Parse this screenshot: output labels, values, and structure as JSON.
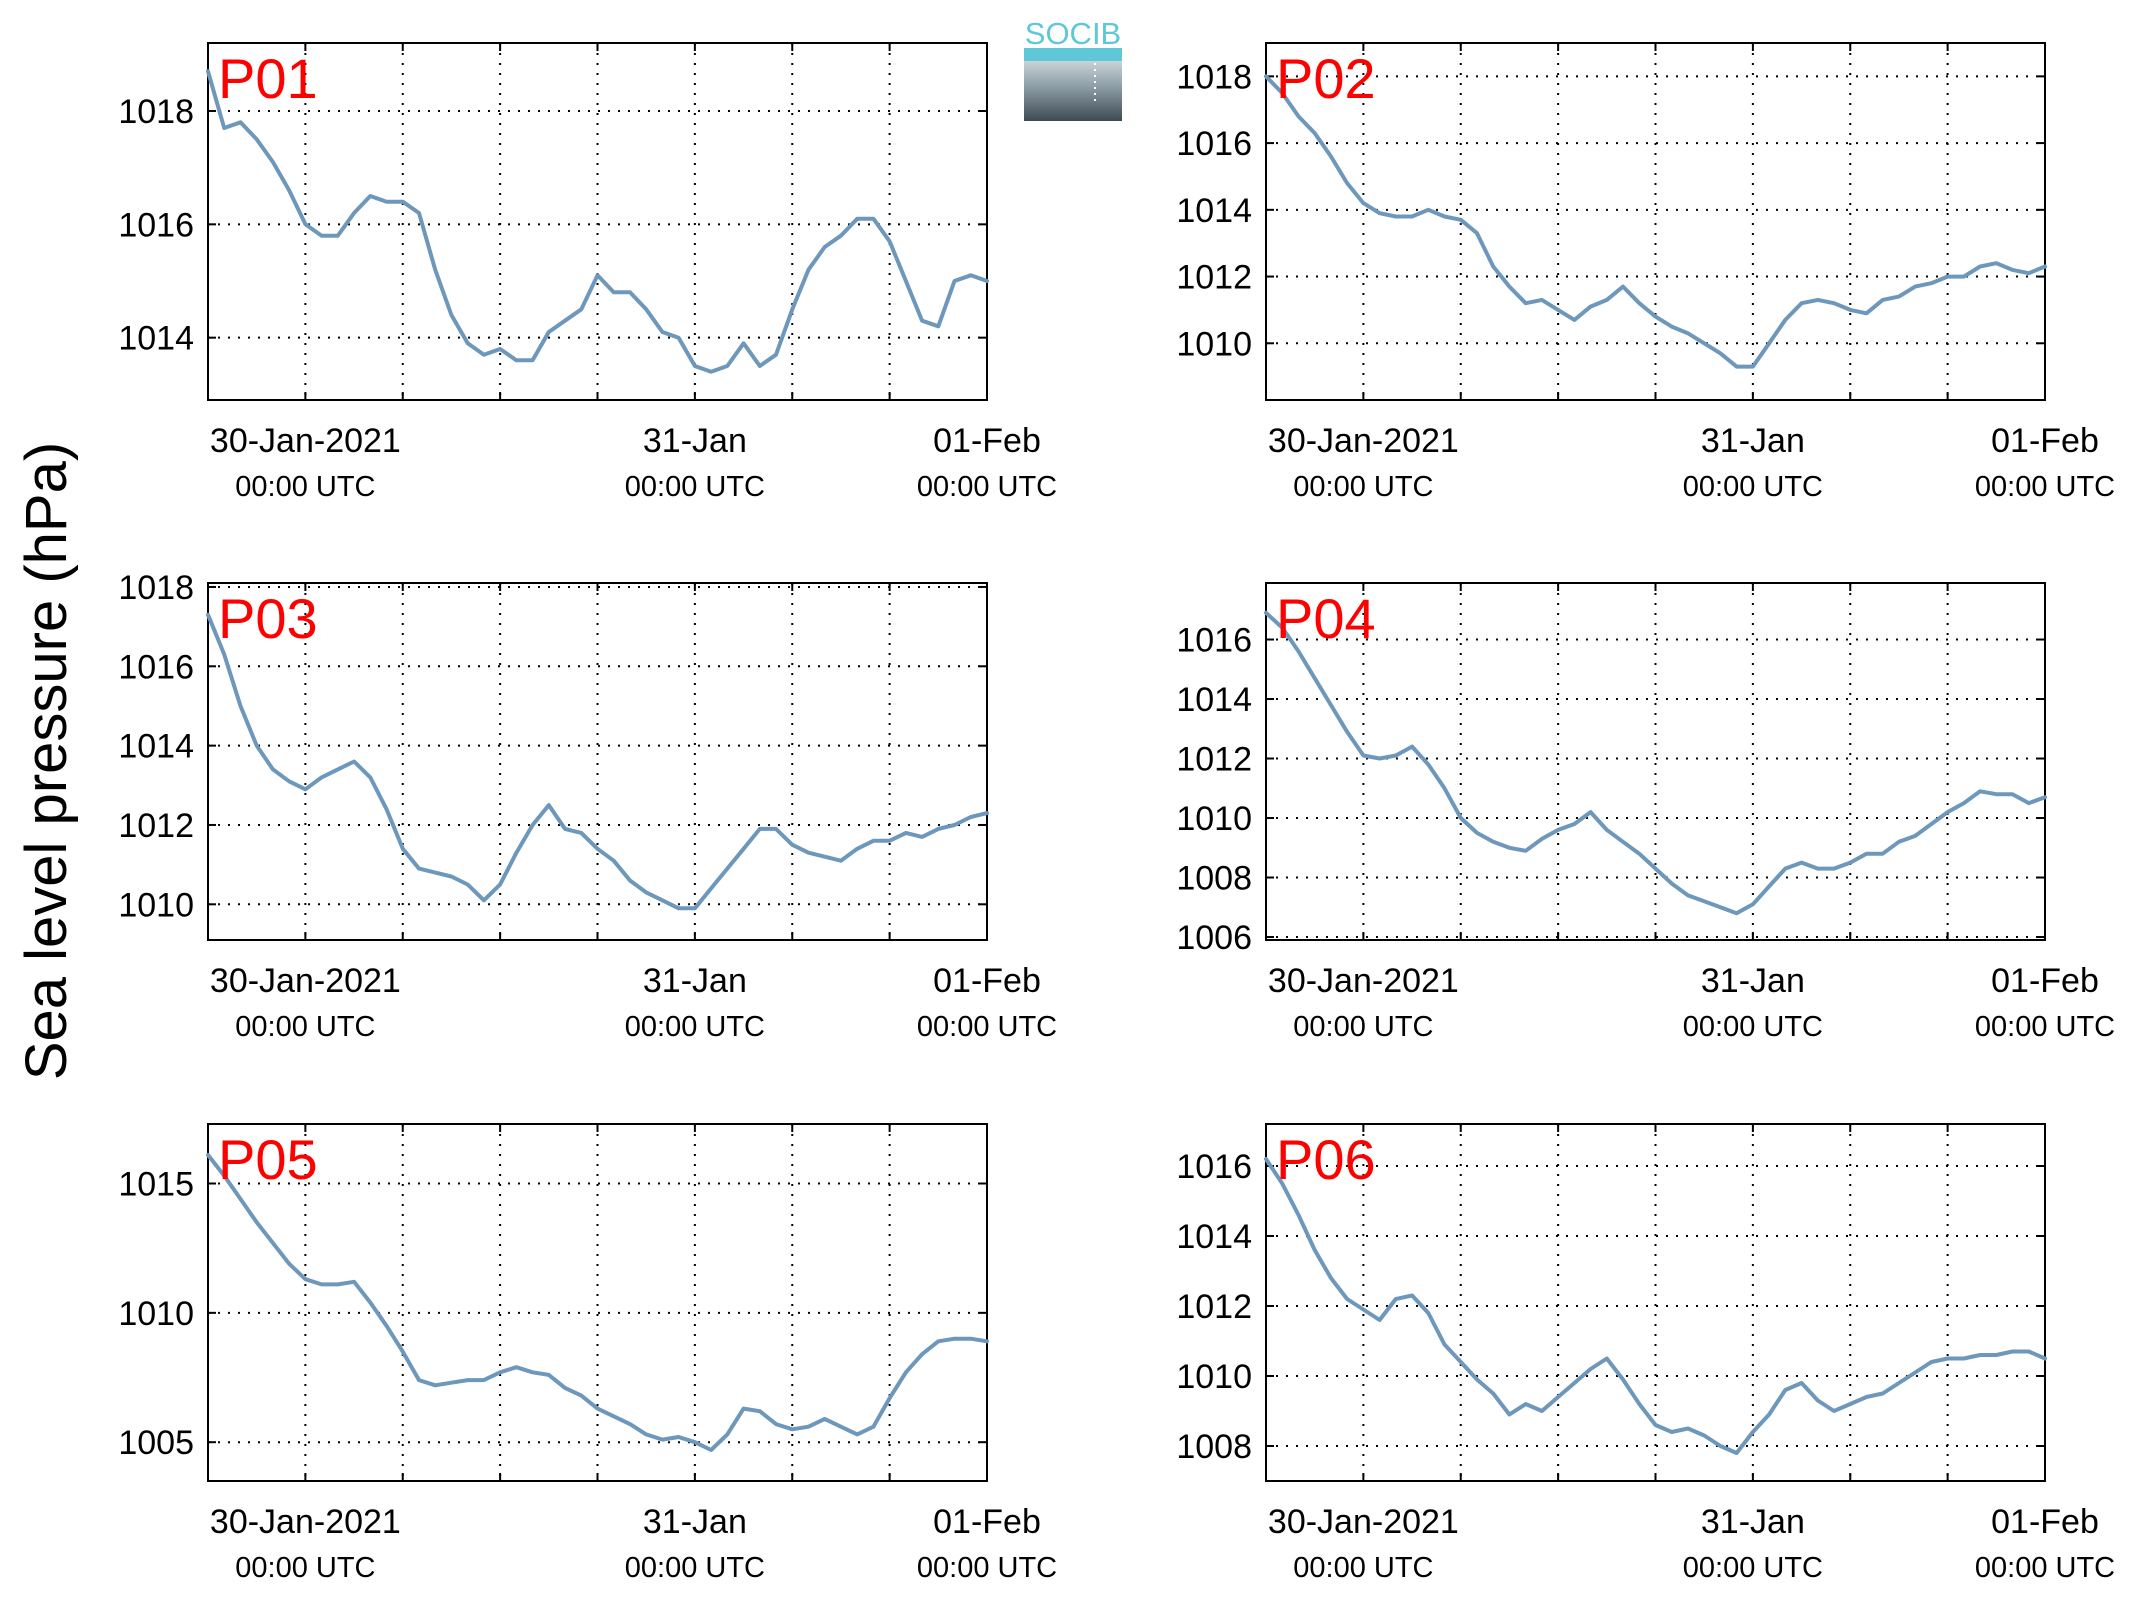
{
  "figure": {
    "ylabel": "Sea level pressure (hPa)",
    "logo_text": "SOCIB"
  },
  "colors": {
    "line": "#6d97bb",
    "panel_label": "#ff0000",
    "grid": "#000000",
    "logo_top": "#5ec8d8",
    "logo_bottom": "#3d4a52"
  },
  "chart_data": [
    {
      "type": "line",
      "title": "P01",
      "x_range": [
        "2021-01-30T00:00Z",
        "2021-02-01T00:00Z"
      ],
      "ylim": [
        1012.9,
        1019.2
      ],
      "yticks": [
        1014,
        1016,
        1018
      ],
      "xticks": [
        {
          "line1": "30-Jan-2021",
          "line2": "00:00 UTC"
        },
        {
          "line1": "31-Jan",
          "line2": "00:00 UTC"
        },
        {
          "line1": "01-Feb",
          "line2": "00:00 UTC"
        }
      ],
      "grid": true,
      "series": [
        {
          "x_hours": [
            -6,
            -5,
            -4,
            -3,
            -2,
            -1,
            0,
            1,
            2,
            3,
            4,
            5,
            6,
            7,
            8,
            9,
            10,
            11,
            12,
            13,
            14,
            15,
            16,
            17,
            18,
            19,
            20,
            21,
            22,
            23,
            24,
            25,
            26,
            27,
            28,
            29,
            30,
            31,
            32,
            33,
            34,
            35,
            36,
            37,
            38,
            39,
            40,
            41,
            42
          ],
          "values": [
            1018.7,
            1017.7,
            1017.8,
            1017.5,
            1017.1,
            1016.6,
            1016.0,
            1015.8,
            1015.8,
            1016.2,
            1016.5,
            1016.4,
            1016.4,
            1016.2,
            1015.2,
            1014.4,
            1013.9,
            1013.7,
            1013.8,
            1013.6,
            1013.6,
            1014.1,
            1014.3,
            1014.5,
            1015.1,
            1014.8,
            1014.8,
            1014.5,
            1014.1,
            1014.0,
            1013.5,
            1013.4,
            1013.5,
            1013.9,
            1013.5,
            1013.7,
            1014.5,
            1015.2,
            1015.6,
            1015.8,
            1016.1,
            1016.1,
            1015.7,
            1015.0,
            1014.3,
            1014.2,
            1015.0,
            1015.1,
            1015.0
          ]
        }
      ]
    },
    {
      "type": "line",
      "title": "P02",
      "x_range": [
        "2021-01-30T00:00Z",
        "2021-02-01T00:00Z"
      ],
      "ylim": [
        1008.3,
        1019.0
      ],
      "yticks": [
        1010,
        1012,
        1014,
        1016,
        1018
      ],
      "xticks": [
        {
          "line1": "30-Jan-2021",
          "line2": "00:00 UTC"
        },
        {
          "line1": "31-Jan",
          "line2": "00:00 UTC"
        },
        {
          "line1": "01-Feb",
          "line2": "00:00 UTC"
        }
      ],
      "grid": true,
      "series": [
        {
          "x_hours": [
            -6,
            -5,
            -4,
            -3,
            -2,
            -1,
            0,
            1,
            2,
            3,
            4,
            5,
            6,
            7,
            8,
            9,
            10,
            11,
            12,
            13,
            14,
            15,
            16,
            17,
            18,
            19,
            20,
            21,
            22,
            23,
            24,
            25,
            26,
            27,
            28,
            29,
            30,
            31,
            32,
            33,
            34,
            35,
            36,
            37,
            38,
            39,
            40,
            41,
            42
          ],
          "values": [
            1018.0,
            1017.5,
            1016.8,
            1016.3,
            1015.6,
            1014.8,
            1014.2,
            1013.9,
            1013.8,
            1013.8,
            1014.0,
            1013.8,
            1013.7,
            1013.3,
            1012.3,
            1011.7,
            1011.2,
            1011.3,
            1011.0,
            1010.7,
            1011.1,
            1011.3,
            1011.7,
            1011.2,
            1010.8,
            1010.5,
            1010.3,
            1010.0,
            1009.7,
            1009.3,
            1009.3,
            1010.0,
            1010.7,
            1011.2,
            1011.3,
            1011.2,
            1011.0,
            1010.9,
            1011.3,
            1011.4,
            1011.7,
            1011.8,
            1012.0,
            1012.0,
            1012.3,
            1012.4,
            1012.2,
            1012.1,
            1012.3
          ]
        }
      ]
    },
    {
      "type": "line",
      "title": "P03",
      "x_range": [
        "2021-01-30T00:00Z",
        "2021-02-01T00:00Z"
      ],
      "ylim": [
        1009.1,
        1018.1
      ],
      "yticks": [
        1010,
        1012,
        1014,
        1016,
        1018
      ],
      "xticks": [
        {
          "line1": "30-Jan-2021",
          "line2": "00:00 UTC"
        },
        {
          "line1": "31-Jan",
          "line2": "00:00 UTC"
        },
        {
          "line1": "01-Feb",
          "line2": "00:00 UTC"
        }
      ],
      "grid": true,
      "series": [
        {
          "x_hours": [
            -6,
            -5,
            -4,
            -3,
            -2,
            -1,
            0,
            1,
            2,
            3,
            4,
            5,
            6,
            7,
            8,
            9,
            10,
            11,
            12,
            13,
            14,
            15,
            16,
            17,
            18,
            19,
            20,
            21,
            22,
            23,
            24,
            25,
            26,
            27,
            28,
            29,
            30,
            31,
            32,
            33,
            34,
            35,
            36,
            37,
            38,
            39,
            40,
            41,
            42
          ],
          "values": [
            1017.3,
            1016.3,
            1015.0,
            1014.0,
            1013.4,
            1013.1,
            1012.9,
            1013.2,
            1013.4,
            1013.6,
            1013.2,
            1012.4,
            1011.4,
            1010.9,
            1010.8,
            1010.7,
            1010.5,
            1010.1,
            1010.5,
            1011.3,
            1012.0,
            1012.5,
            1011.9,
            1011.8,
            1011.4,
            1011.1,
            1010.6,
            1010.3,
            1010.1,
            1009.9,
            1009.9,
            1010.4,
            1010.9,
            1011.4,
            1011.9,
            1011.9,
            1011.5,
            1011.3,
            1011.2,
            1011.1,
            1011.4,
            1011.6,
            1011.6,
            1011.8,
            1011.7,
            1011.9,
            1012.0,
            1012.2,
            1012.3
          ]
        }
      ]
    },
    {
      "type": "line",
      "title": "P04",
      "x_range": [
        "2021-01-30T00:00Z",
        "2021-02-01T00:00Z"
      ],
      "ylim": [
        1005.9,
        1017.9
      ],
      "yticks": [
        1006,
        1008,
        1010,
        1012,
        1014,
        1016
      ],
      "xticks": [
        {
          "line1": "30-Jan-2021",
          "line2": "00:00 UTC"
        },
        {
          "line1": "31-Jan",
          "line2": "00:00 UTC"
        },
        {
          "line1": "01-Feb",
          "line2": "00:00 UTC"
        }
      ],
      "grid": true,
      "series": [
        {
          "x_hours": [
            -6,
            -5,
            -4,
            -3,
            -2,
            -1,
            0,
            1,
            2,
            3,
            4,
            5,
            6,
            7,
            8,
            9,
            10,
            11,
            12,
            13,
            14,
            15,
            16,
            17,
            18,
            19,
            20,
            21,
            22,
            23,
            24,
            25,
            26,
            27,
            28,
            29,
            30,
            31,
            32,
            33,
            34,
            35,
            36,
            37,
            38,
            39,
            40,
            41,
            42
          ],
          "values": [
            1016.9,
            1016.4,
            1015.6,
            1014.7,
            1013.8,
            1012.9,
            1012.1,
            1012.0,
            1012.1,
            1012.4,
            1011.8,
            1011.0,
            1010.0,
            1009.5,
            1009.2,
            1009.0,
            1008.9,
            1009.3,
            1009.6,
            1009.8,
            1010.2,
            1009.6,
            1009.2,
            1008.8,
            1008.3,
            1007.8,
            1007.4,
            1007.2,
            1007.0,
            1006.8,
            1007.1,
            1007.7,
            1008.3,
            1008.5,
            1008.3,
            1008.3,
            1008.5,
            1008.8,
            1008.8,
            1009.2,
            1009.4,
            1009.8,
            1010.2,
            1010.5,
            1010.9,
            1010.8,
            1010.8,
            1010.5,
            1010.7
          ]
        }
      ]
    },
    {
      "type": "line",
      "title": "P05",
      "x_range": [
        "2021-01-30T00:00Z",
        "2021-02-01T00:00Z"
      ],
      "ylim": [
        1003.5,
        1017.3
      ],
      "yticks": [
        1005,
        1010,
        1015
      ],
      "xticks": [
        {
          "line1": "30-Jan-2021",
          "line2": "00:00 UTC"
        },
        {
          "line1": "31-Jan",
          "line2": "00:00 UTC"
        },
        {
          "line1": "01-Feb",
          "line2": "00:00 UTC"
        }
      ],
      "grid": true,
      "series": [
        {
          "x_hours": [
            -6,
            -5,
            -4,
            -3,
            -2,
            -1,
            0,
            1,
            2,
            3,
            4,
            5,
            6,
            7,
            8,
            9,
            10,
            11,
            12,
            13,
            14,
            15,
            16,
            17,
            18,
            19,
            20,
            21,
            22,
            23,
            24,
            25,
            26,
            27,
            28,
            29,
            30,
            31,
            32,
            33,
            34,
            35,
            36,
            37,
            38,
            39,
            40,
            41,
            42
          ],
          "values": [
            1016.1,
            1015.3,
            1014.4,
            1013.5,
            1012.7,
            1011.9,
            1011.3,
            1011.1,
            1011.1,
            1011.2,
            1010.4,
            1009.5,
            1008.5,
            1007.4,
            1007.2,
            1007.3,
            1007.4,
            1007.4,
            1007.7,
            1007.9,
            1007.7,
            1007.6,
            1007.1,
            1006.8,
            1006.3,
            1006.0,
            1005.7,
            1005.3,
            1005.1,
            1005.2,
            1005.0,
            1004.7,
            1005.3,
            1006.3,
            1006.2,
            1005.7,
            1005.5,
            1005.6,
            1005.9,
            1005.6,
            1005.3,
            1005.6,
            1006.7,
            1007.7,
            1008.4,
            1008.9,
            1009.0,
            1009.0,
            1008.9
          ]
        }
      ]
    },
    {
      "type": "line",
      "title": "P06",
      "x_range": [
        "2021-01-30T00:00Z",
        "2021-02-01T00:00Z"
      ],
      "ylim": [
        1007.0,
        1017.2
      ],
      "yticks": [
        1008,
        1010,
        1012,
        1014,
        1016
      ],
      "xticks": [
        {
          "line1": "30-Jan-2021",
          "line2": "00:00 UTC"
        },
        {
          "line1": "31-Jan",
          "line2": "00:00 UTC"
        },
        {
          "line1": "01-Feb",
          "line2": "00:00 UTC"
        }
      ],
      "grid": true,
      "series": [
        {
          "x_hours": [
            -6,
            -5,
            -4,
            -3,
            -2,
            -1,
            0,
            1,
            2,
            3,
            4,
            5,
            6,
            7,
            8,
            9,
            10,
            11,
            12,
            13,
            14,
            15,
            16,
            17,
            18,
            19,
            20,
            21,
            22,
            23,
            24,
            25,
            26,
            27,
            28,
            29,
            30,
            31,
            32,
            33,
            34,
            35,
            36,
            37,
            38,
            39,
            40,
            41,
            42
          ],
          "values": [
            1016.2,
            1015.5,
            1014.6,
            1013.6,
            1012.8,
            1012.2,
            1011.9,
            1011.6,
            1012.2,
            1012.3,
            1011.8,
            1010.9,
            1010.4,
            1009.9,
            1009.5,
            1008.9,
            1009.2,
            1009.0,
            1009.4,
            1009.8,
            1010.2,
            1010.5,
            1009.9,
            1009.2,
            1008.6,
            1008.4,
            1008.5,
            1008.3,
            1008.0,
            1007.8,
            1008.4,
            1008.9,
            1009.6,
            1009.8,
            1009.3,
            1009.0,
            1009.2,
            1009.4,
            1009.5,
            1009.8,
            1010.1,
            1010.4,
            1010.5,
            1010.5,
            1010.6,
            1010.6,
            1010.7,
            1010.7,
            1010.5
          ]
        }
      ]
    }
  ]
}
